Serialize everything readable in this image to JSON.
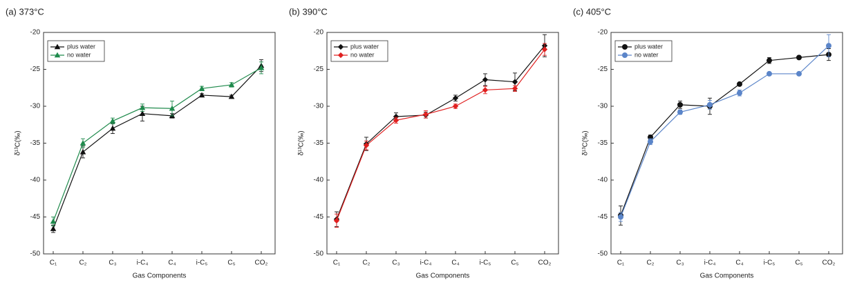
{
  "chart_data": [
    {
      "type": "line",
      "title": "(a) 373°C",
      "x_label": "Gas Components",
      "y_label": "δ¹³C(‰)",
      "categories": [
        "C₁",
        "C₂",
        "C₃",
        "i-C₄",
        "C₄",
        "i-C₅",
        "C₅",
        "CO₂"
      ],
      "ylim": [
        -50,
        -20
      ],
      "yticks": [
        -20,
        -25,
        -30,
        -35,
        -40,
        -45,
        -50
      ],
      "legend": "upper left",
      "series": [
        {
          "name": "plus water",
          "color": "#111111",
          "marker": "triangle",
          "values": [
            -46.6,
            -36.2,
            -33.0,
            -31.0,
            -31.3,
            -28.5,
            -28.7,
            -24.5
          ],
          "errors": [
            0.5,
            0.8,
            0.7,
            1.0,
            0.3,
            0.2,
            0.2,
            0.8
          ]
        },
        {
          "name": "no water",
          "color": "#1f8a4c",
          "marker": "triangle",
          "values": [
            -45.6,
            -35.0,
            -32.0,
            -30.2,
            -30.3,
            -27.6,
            -27.1,
            -24.8
          ],
          "errors": [
            0.6,
            0.6,
            0.4,
            0.5,
            1.0,
            0.3,
            0.3,
            0.8
          ]
        }
      ]
    },
    {
      "type": "line",
      "title": "(b) 390°C",
      "x_label": "Gas Components",
      "y_label": "δ¹³C(‰)",
      "categories": [
        "C₁",
        "C₂",
        "C₃",
        "i-C₄",
        "C₄",
        "i-C₅",
        "C₅",
        "CO₂"
      ],
      "ylim": [
        -50,
        -20
      ],
      "yticks": [
        -20,
        -25,
        -30,
        -35,
        -40,
        -45,
        -50
      ],
      "legend": "upper left",
      "series": [
        {
          "name": "plus water",
          "color": "#111111",
          "marker": "diamond",
          "values": [
            -45.3,
            -35.1,
            -31.4,
            -31.2,
            -28.9,
            -26.4,
            -26.7,
            -21.8
          ],
          "errors": [
            1.0,
            0.9,
            0.5,
            0.4,
            0.4,
            0.8,
            1.2,
            1.5
          ]
        },
        {
          "name": "no water",
          "color": "#e02020",
          "marker": "diamond",
          "values": [
            -45.5,
            -35.3,
            -31.9,
            -31.1,
            -30.0,
            -27.8,
            -27.6,
            -22.3
          ],
          "errors": [
            0.9,
            0.6,
            0.4,
            0.5,
            0.3,
            0.5,
            0.4,
            0.8
          ]
        }
      ]
    },
    {
      "type": "line",
      "title": "(c) 405°C",
      "x_label": "Gas Components",
      "y_label": "δ¹³C(‰)",
      "categories": [
        "C₁",
        "C₂",
        "C₃",
        "i-C₄",
        "C₄",
        "i-C₅",
        "C₅",
        "CO₂"
      ],
      "ylim": [
        -50,
        -20
      ],
      "yticks": [
        -20,
        -25,
        -30,
        -35,
        -40,
        -45,
        -50
      ],
      "legend": "upper left",
      "series": [
        {
          "name": "plus water",
          "color": "#111111",
          "marker": "circle",
          "values": [
            -44.8,
            -34.2,
            -29.8,
            -30.0,
            -27.0,
            -23.8,
            -23.4,
            -23.0
          ],
          "errors": [
            1.3,
            0.3,
            0.5,
            1.1,
            0.2,
            0.4,
            0.2,
            0.8
          ]
        },
        {
          "name": "no water",
          "color": "#5b85c9",
          "marker": "circle",
          "values": [
            -45.0,
            -34.8,
            -30.8,
            -29.8,
            -28.2,
            -25.6,
            -25.6,
            -21.8
          ],
          "errors": [
            0.6,
            0.4,
            0.3,
            0.6,
            0.4,
            0.2,
            0.2,
            1.5
          ]
        }
      ]
    }
  ]
}
